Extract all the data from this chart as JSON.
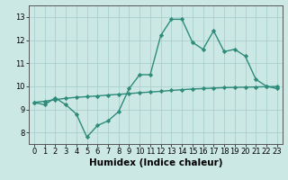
{
  "xlabel": "Humidex (Indice chaleur)",
  "x_values": [
    0,
    1,
    2,
    3,
    4,
    5,
    6,
    7,
    8,
    9,
    10,
    11,
    12,
    13,
    14,
    15,
    16,
    17,
    18,
    19,
    20,
    21,
    22,
    23
  ],
  "line1_y": [
    9.3,
    9.2,
    9.5,
    9.2,
    8.8,
    7.8,
    8.3,
    8.5,
    8.9,
    9.9,
    10.5,
    10.5,
    12.2,
    12.9,
    12.9,
    11.9,
    11.6,
    12.4,
    11.5,
    11.6,
    11.3,
    10.3,
    10.0,
    9.9
  ],
  "line2_y": [
    9.3,
    9.35,
    9.42,
    9.48,
    9.52,
    9.55,
    9.58,
    9.62,
    9.65,
    9.68,
    9.72,
    9.75,
    9.78,
    9.82,
    9.85,
    9.88,
    9.9,
    9.92,
    9.94,
    9.95,
    9.96,
    9.97,
    9.98,
    9.99
  ],
  "line_color": "#2d8b7a",
  "bg_color": "#cce8e5",
  "grid_color": "#aacfcc",
  "ylim": [
    7.5,
    13.5
  ],
  "xlim": [
    -0.5,
    23.5
  ],
  "yticks": [
    8,
    9,
    10,
    11,
    12,
    13
  ],
  "xticks": [
    0,
    1,
    2,
    3,
    4,
    5,
    6,
    7,
    8,
    9,
    10,
    11,
    12,
    13,
    14,
    15,
    16,
    17,
    18,
    19,
    20,
    21,
    22,
    23
  ],
  "tick_fontsize": 6,
  "xlabel_fontsize": 7.5,
  "marker": "D",
  "marker_size": 2.2,
  "linewidth": 1.0
}
